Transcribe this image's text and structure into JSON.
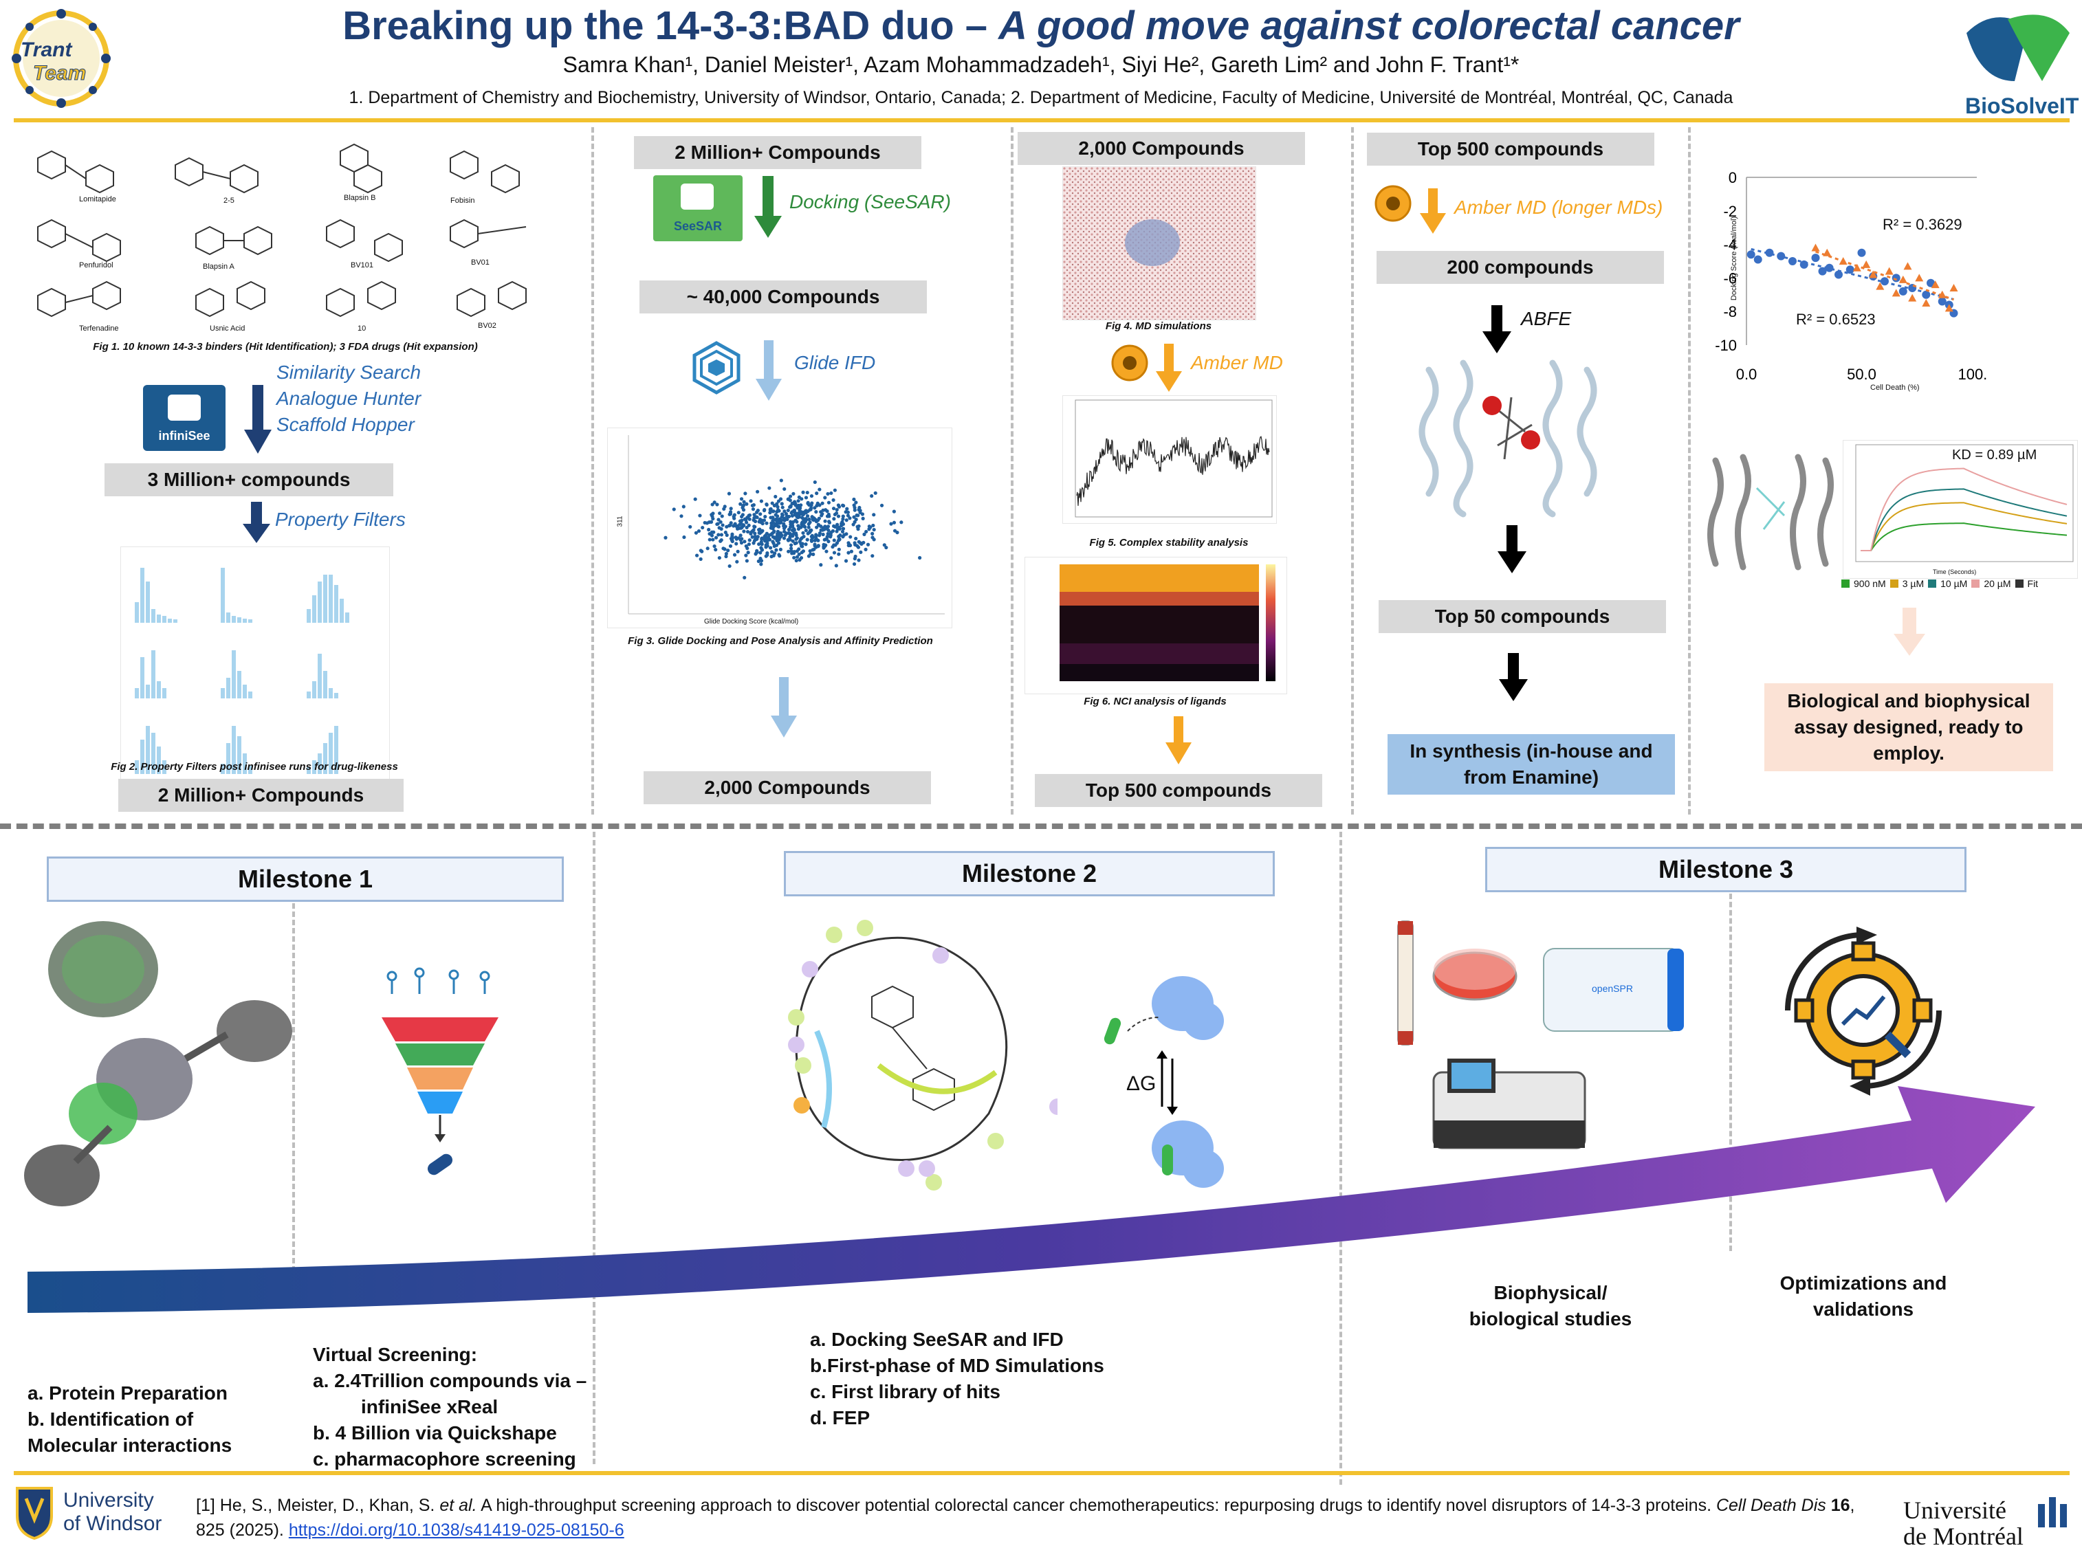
{
  "header": {
    "title_main": "Breaking up the 14-3-3:BAD duo – ",
    "title_italic": "A good move against colorectal cancer",
    "authors": "Samra Khan¹, Daniel Meister¹, Azam Mohammadzadeh¹, Siyi He², Gareth Lim² and John F. Trant¹*",
    "affiliations": "1. Department of Chemistry and Biochemistry, University of Windsor, Ontario, Canada; 2. Department of Medicine, Faculty of Medicine, Université de Montréal, Montréal, QC, Canada",
    "logo_left_line1": "Trant",
    "logo_left_line2": "Team",
    "logo_right": "BioSolveIT"
  },
  "col1": {
    "molecules": [
      "Lomitapide",
      "2-5",
      "Blapsin B",
      "Fobisin",
      "Penfuridol",
      "Blapsin A",
      "BV101",
      "BV01",
      "Terfenadine",
      "Usnic Acid",
      "10",
      "BV02"
    ],
    "fig1_caption": "Fig 1. 10 known 14-3-3 binders (Hit Identification); 3 FDA drugs (Hit expansion)",
    "infinisee_label": "infiniSee",
    "methods": [
      "Similarity Search",
      "Analogue Hunter",
      "Scaffold Hopper"
    ],
    "box1": "3 Million+ compounds",
    "filters_label": "Property Filters",
    "fig2_caption": "Fig 2. Property Filters post infinisee runs for drug-likeness",
    "box2": "2 Million+ Compounds"
  },
  "col2": {
    "box1": "2 Million+ Compounds",
    "seesar_label": "SeeSAR",
    "docking_label": "Docking (SeeSAR)",
    "box2": "~ 40,000 Compounds",
    "glide_label": "Glide IFD",
    "scatter_xlabel": "Glide Docking Score (kcal/mol)",
    "scatter_ylabel": "311",
    "fig3_caption": "Fig 3. Glide Docking and Pose Analysis and Affinity Prediction",
    "box3": "2,000 Compounds"
  },
  "col3": {
    "box1": "2,000 Compounds",
    "fig4_caption": "Fig 4. MD simulations",
    "amber_label": "Amber MD",
    "fig5_caption": "Fig 5. Complex stability analysis",
    "fig6_caption": "Fig 6. NCI analysis of ligands",
    "box2": "Top 500 compounds"
  },
  "col4": {
    "box1": "Top 500 compounds",
    "amber_long_label": "Amber MD (longer MDs)",
    "box2": "200 compounds",
    "abfe_label": "ABFE",
    "box3": "Top 50 compounds",
    "box4": "In synthesis (in-house and from Enamine)"
  },
  "col5": {
    "chart_r2_a": "R² = 0.3629",
    "chart_r2_b": "R² = 0.6523",
    "chart_ylabel": "Docking Score (kcal/mol)",
    "chart_xlabel": "Cell Death (%)",
    "kd_label": "KD = 0.89 µM",
    "spr_xlabel": "Time (Seconds)",
    "spr_legend": [
      "900 nM",
      "3 µM",
      "10 µM",
      "20 µM",
      "Fit"
    ],
    "spr_colors": [
      "#2ca02c",
      "#d4a017",
      "#1f7a7a",
      "#e8a0a0",
      "#333333"
    ],
    "assay_box": "Biological and biophysical assay designed, ready to employ."
  },
  "chart_data": {
    "type": "scatter",
    "title": "",
    "xlabel": "Cell Death (%)",
    "ylabel": "Docking Score (kcal/mol)",
    "xlim": [
      0,
      100
    ],
    "ylim": [
      -10,
      0
    ],
    "x_ticks": [
      "0.0",
      "50.0",
      "100.0"
    ],
    "y_ticks": [
      "0",
      "-2",
      "-4",
      "-6",
      "-8",
      "-10"
    ],
    "series": [
      {
        "name": "blue",
        "color": "#3a6fc4",
        "points": [
          [
            2,
            -4.6
          ],
          [
            5,
            -4.9
          ],
          [
            10,
            -4.5
          ],
          [
            15,
            -4.7
          ],
          [
            20,
            -5.0
          ],
          [
            25,
            -5.2
          ],
          [
            30,
            -4.8
          ],
          [
            33,
            -5.6
          ],
          [
            36,
            -5.4
          ],
          [
            40,
            -5.8
          ],
          [
            45,
            -5.5
          ],
          [
            50,
            -4.5
          ],
          [
            55,
            -5.9
          ],
          [
            60,
            -6.2
          ],
          [
            65,
            -6.0
          ],
          [
            68,
            -6.8
          ],
          [
            72,
            -6.6
          ],
          [
            78,
            -7.0
          ],
          [
            80,
            -6.3
          ],
          [
            85,
            -7.4
          ],
          [
            88,
            -7.6
          ],
          [
            90,
            -8.1
          ]
        ]
      },
      {
        "name": "orange",
        "color": "#ed7d31",
        "points": [
          [
            30,
            -4.2
          ],
          [
            35,
            -4.5
          ],
          [
            42,
            -5.0
          ],
          [
            48,
            -5.4
          ],
          [
            52,
            -5.2
          ],
          [
            55,
            -5.8
          ],
          [
            58,
            -6.5
          ],
          [
            62,
            -5.6
          ],
          [
            65,
            -6.9
          ],
          [
            68,
            -6.1
          ],
          [
            70,
            -5.3
          ],
          [
            72,
            -7.2
          ],
          [
            75,
            -6.0
          ],
          [
            78,
            -7.5
          ],
          [
            82,
            -6.4
          ],
          [
            85,
            -7.0
          ],
          [
            88,
            -7.8
          ],
          [
            90,
            -6.6
          ]
        ]
      }
    ]
  },
  "milestones": {
    "m1": "Milestone 1",
    "m2": "Milestone 2",
    "m3": "Milestone 3",
    "m1_text_a": "a. Protein Preparation",
    "m1_text_b": "b. Identification of",
    "m1_text_c": "Molecular interactions",
    "vs_title": "Virtual Screening:",
    "vs_a1": "a.    2.4Trillion compounds via –",
    "vs_a2": "infiniSee xReal",
    "vs_b": "b. 4 Billion via Quickshape",
    "vs_c": "c. pharmacophore screening",
    "m2_a": "a. Docking SeeSAR and IFD",
    "m2_b": "b.First-phase of MD Simulations",
    "m2_c": "c. First library of hits",
    "m2_d": "d. FEP",
    "dg_label": "ΔG",
    "bio_line1": "Biophysical/",
    "bio_line2": "biological studies",
    "opt_line1": "Optimizations and",
    "opt_line2": "validations",
    "openspr_label": "openSPR"
  },
  "footer": {
    "ref_prefix": "[1] He, S., Meister, D., Khan, S. ",
    "ref_etal": "et al.",
    "ref_body": " A high-throughput screening approach to discover potential colorectal cancer chemotherapeutics: repurposing drugs to identify novel disruptors of 14-3-3 proteins. ",
    "ref_journal": "Cell Death Dis ",
    "ref_vol": "16",
    "ref_pages": ", 825 (2025). ",
    "ref_doi": "https://doi.org/10.1038/s41419-025-08150-6",
    "windsor_line1": "University",
    "windsor_line2": "of Windsor",
    "montreal_line1": "Université",
    "montreal_line2": "de Montréal"
  }
}
